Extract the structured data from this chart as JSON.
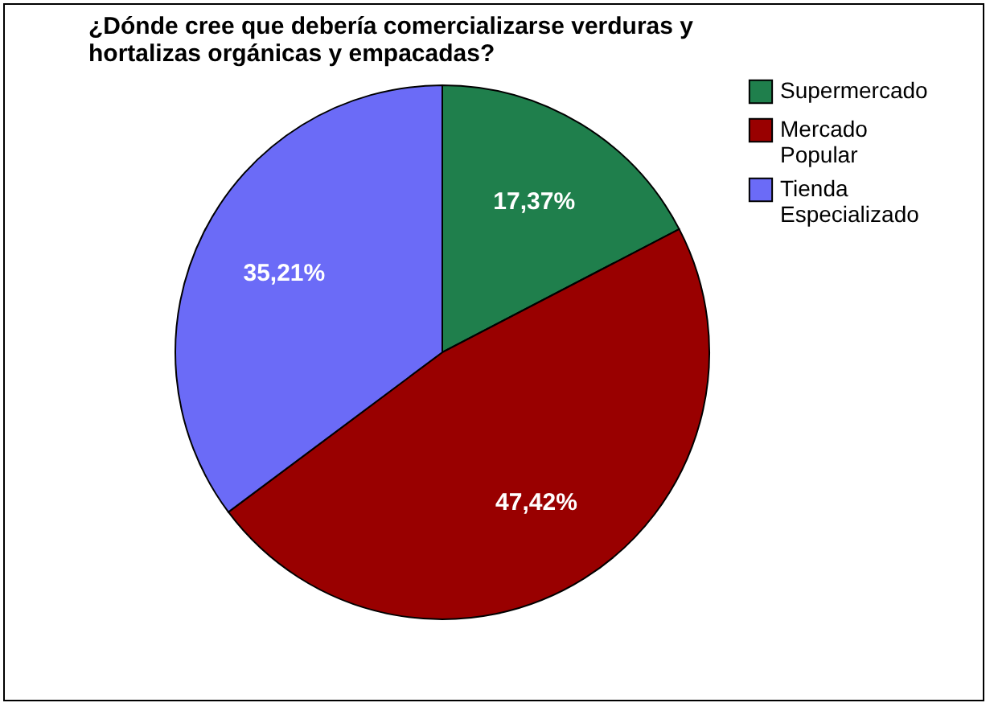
{
  "chart_data": {
    "type": "pie",
    "title": "¿Dónde cree que debería comercializarse verduras y hortalizas orgánicas y empacadas?",
    "categories": [
      "Supermercado",
      "Mercado Popular",
      "Tienda Especializado"
    ],
    "values": [
      17.37,
      47.42,
      35.21
    ],
    "colors": [
      "#1f7f4c",
      "#990000",
      "#6b6bf7"
    ],
    "value_labels": [
      "17,37%",
      "47,42%",
      "35,21%"
    ],
    "legend": "right"
  }
}
